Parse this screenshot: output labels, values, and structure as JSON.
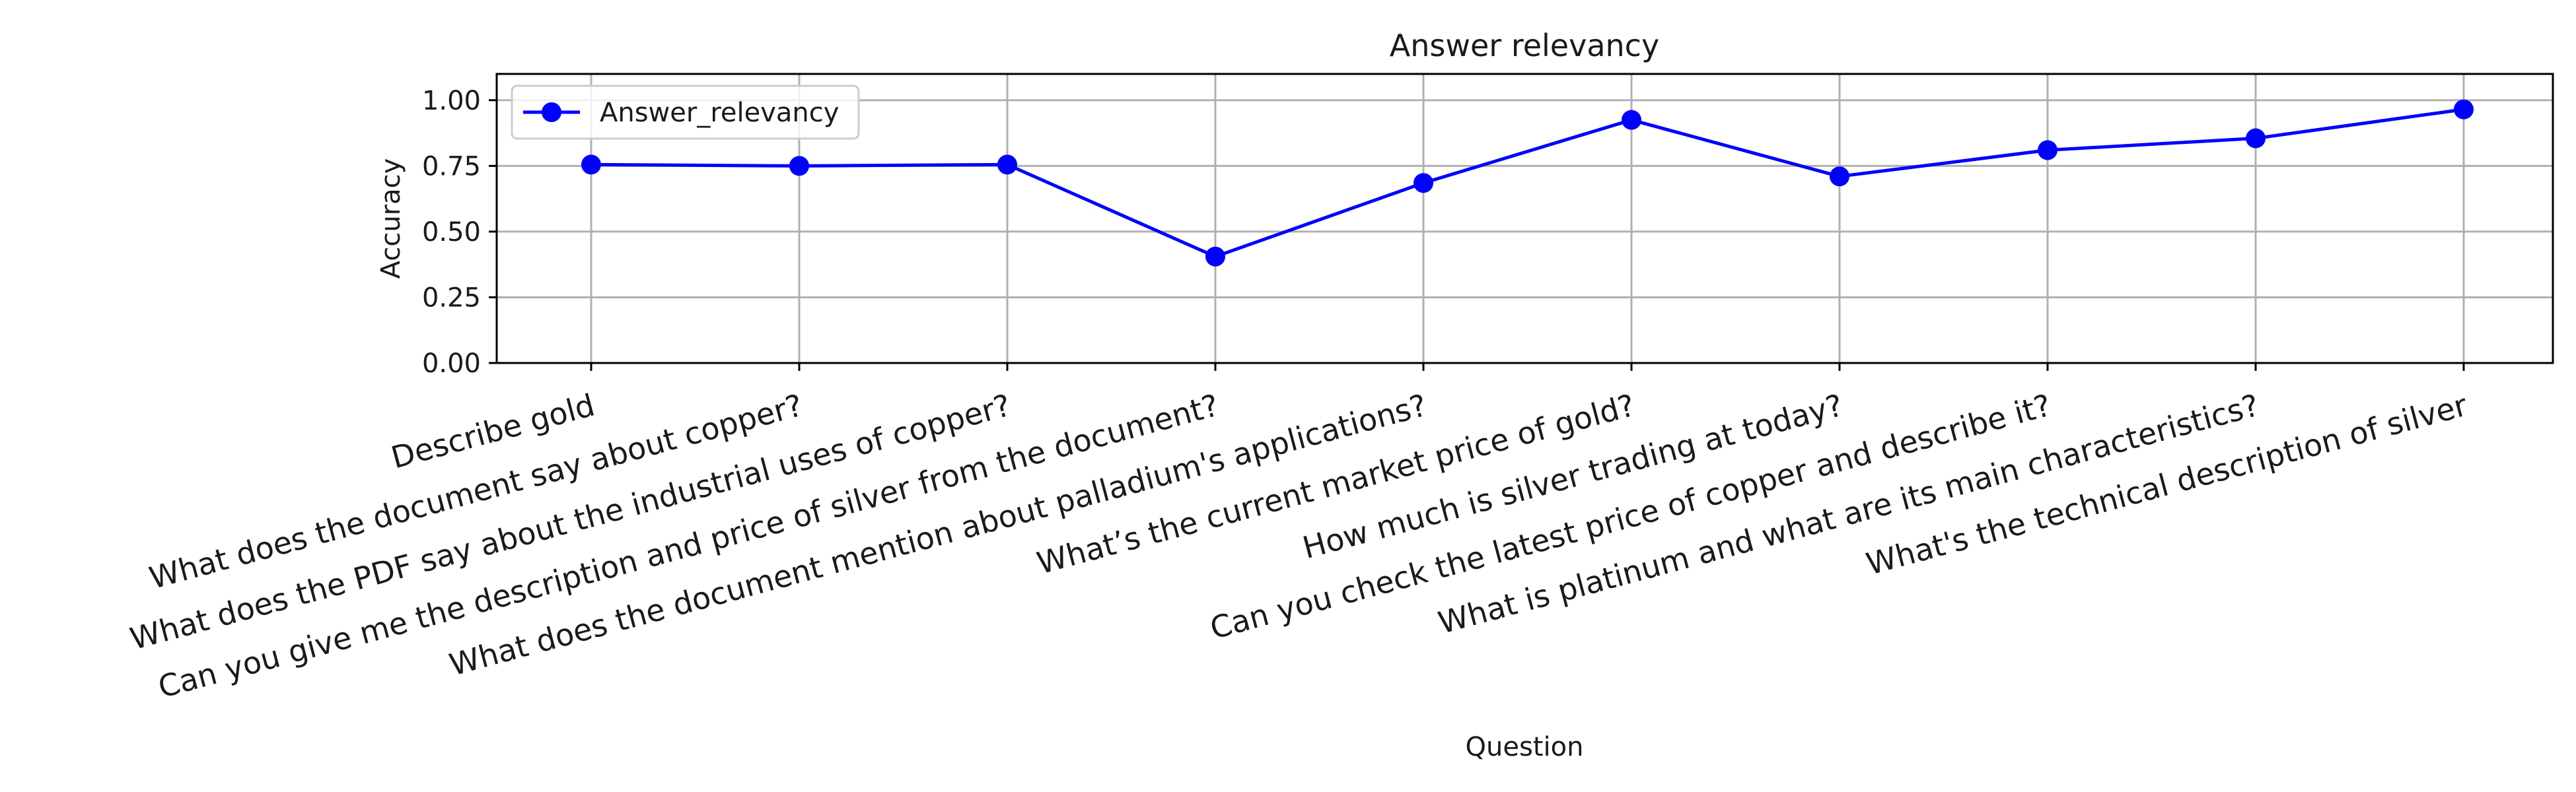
{
  "chart_data": {
    "type": "line",
    "title": "Answer relevancy",
    "xlabel": "Question",
    "ylabel": "Accuracy",
    "ylim": [
      0,
      1.1
    ],
    "yticks": [
      "0.00",
      "0.25",
      "0.50",
      "0.75",
      "1.00"
    ],
    "grid": true,
    "legend_position": "upper-left",
    "categories": [
      "Describe gold",
      "What does the document say about copper?",
      "What does the PDF say about the industrial uses of copper?",
      "Can you give me the description and price of silver from the document?",
      "What does the document mention about palladium's applications?",
      "What’s the current market price of gold?",
      "How much is silver trading at today?",
      "Can you check the latest price of copper and describe it?",
      "What is platinum and what are its main characteristics?",
      "What's the technical description of silver"
    ],
    "series": [
      {
        "name": "Answer_relevancy",
        "color": "#0000ff",
        "marker": "circle",
        "values": [
          0.755,
          0.75,
          0.755,
          0.405,
          0.685,
          0.925,
          0.71,
          0.81,
          0.855,
          0.965
        ]
      }
    ]
  }
}
